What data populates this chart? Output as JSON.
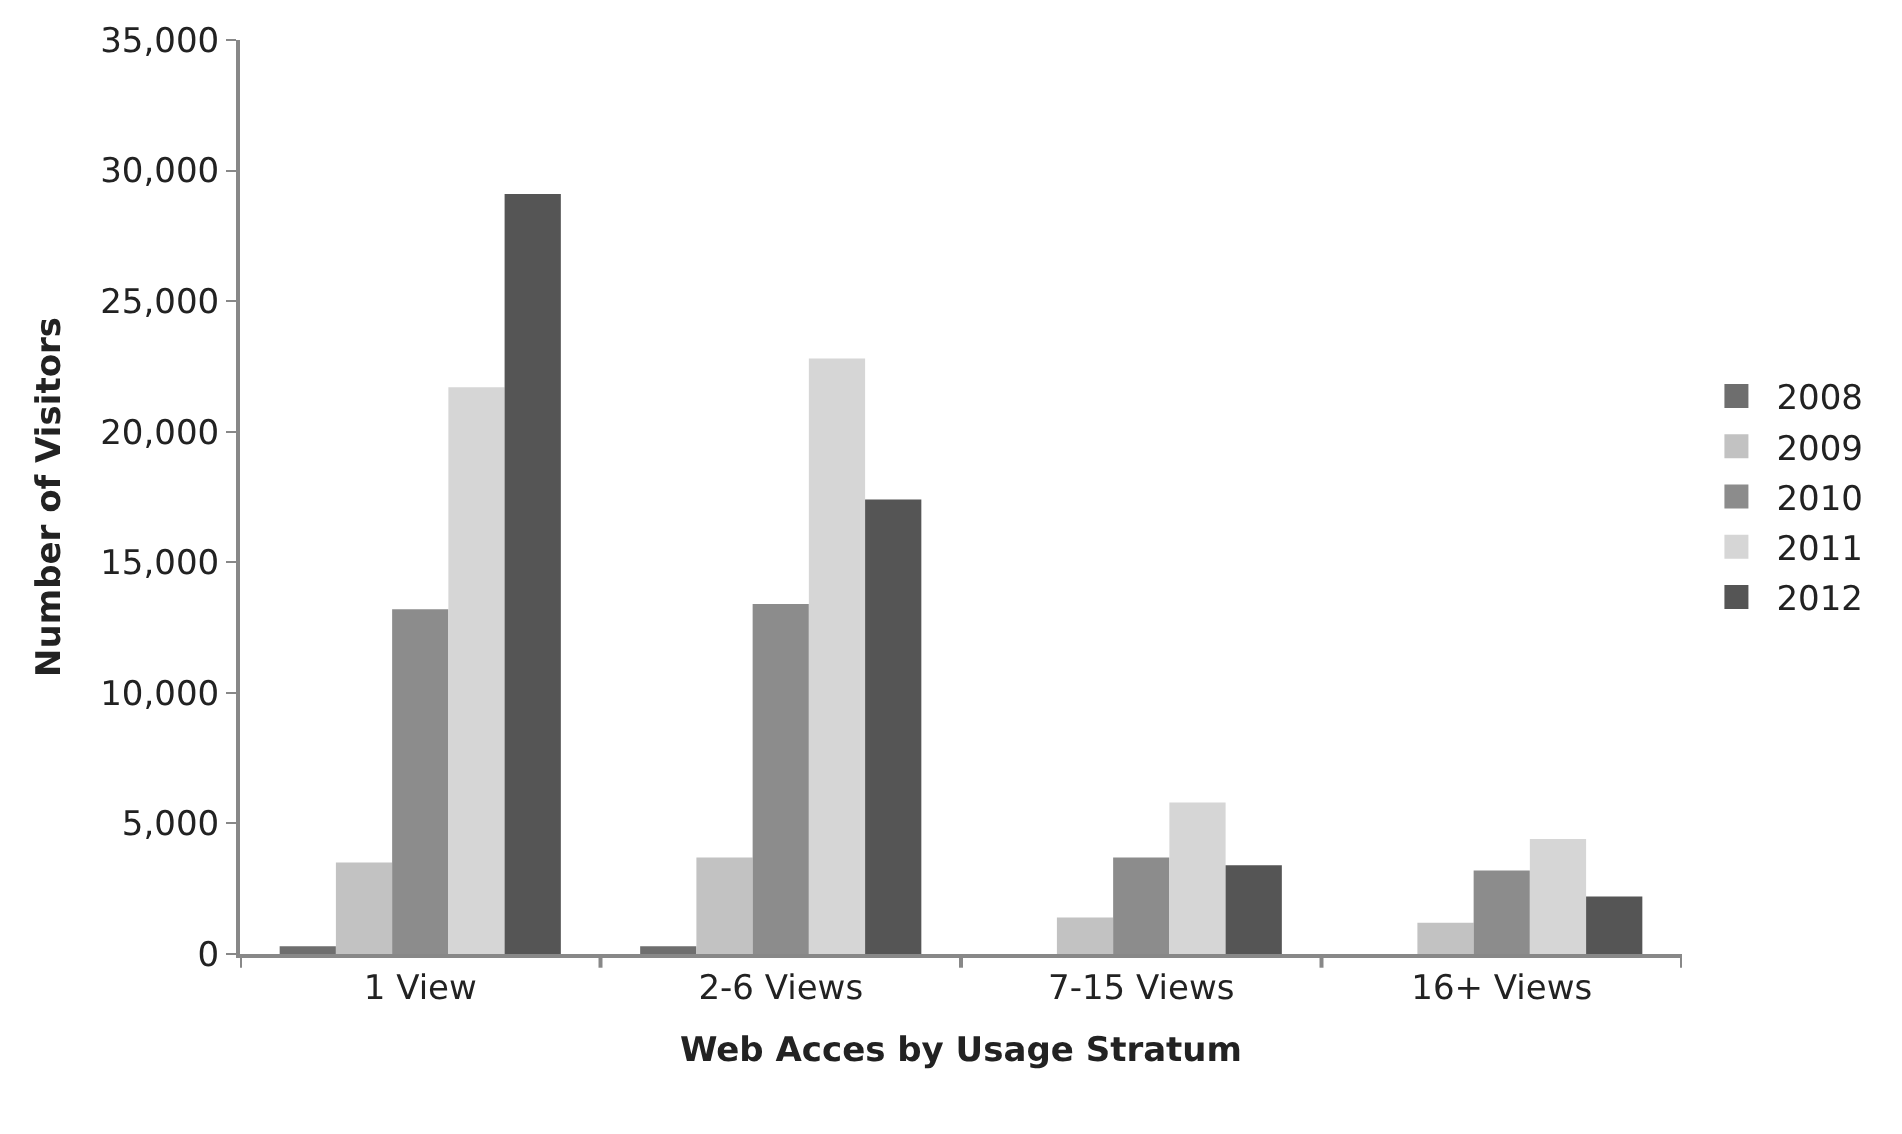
{
  "chart_data": {
    "type": "bar",
    "xlabel": "Web Acces by Usage Stratum",
    "ylabel": "Number of Visitors",
    "categories": [
      "1 View",
      "2-6 Views",
      "7-15 Views",
      "16+ Views"
    ],
    "series": [
      {
        "name": "2008",
        "color": "#6e6e6e",
        "values": [
          300,
          300,
          0,
          0
        ]
      },
      {
        "name": "2009",
        "color": "#c2c2c2",
        "values": [
          3500,
          3700,
          1400,
          1200
        ]
      },
      {
        "name": "2010",
        "color": "#8c8c8c",
        "values": [
          13200,
          13400,
          3700,
          3200
        ]
      },
      {
        "name": "2011",
        "color": "#d6d6d6",
        "values": [
          21700,
          22800,
          5800,
          4400
        ]
      },
      {
        "name": "2012",
        "color": "#555555",
        "values": [
          29100,
          17400,
          3400,
          2200
        ]
      }
    ],
    "ylim": [
      0,
      35000
    ],
    "yticks": [
      {
        "value": 0,
        "label": "0"
      },
      {
        "value": 5000,
        "label": "5,000"
      },
      {
        "value": 10000,
        "label": "10,000"
      },
      {
        "value": 15000,
        "label": "15,000"
      },
      {
        "value": 20000,
        "label": "20,000"
      },
      {
        "value": 25000,
        "label": "25,000"
      },
      {
        "value": 30000,
        "label": "30,000"
      },
      {
        "value": 35000,
        "label": "35,000"
      }
    ],
    "legend": "right"
  }
}
